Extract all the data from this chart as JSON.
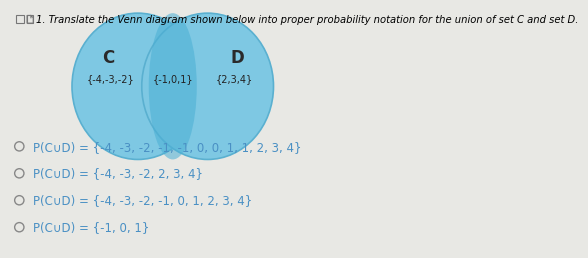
{
  "title": "1. Translate the Venn diagram shown below into proper probability notation for the union of set C and set D.",
  "bg_color": "#e8e8e4",
  "circle_color_light": "#7ec8e3",
  "circle_color_dark": "#4aafd4",
  "label_C": "C",
  "label_D": "D",
  "set_C_only": "{-4,-3,-2}",
  "set_intersection": "{-1,0,1}",
  "set_D_only": "{2,3,4}",
  "options": [
    "P(C∪D) = {-4, -3, -2, -1, -1, 0, 0, 1, 1, 2, 3, 4}",
    "P(C∪D) = {-4, -3, -2, 2, 3, 4}",
    "P(C∪D) = {-4, -3, -2, -1, 0, 1, 2, 3, 4}",
    "P(C∪D) = {-1, 0, 1}"
  ],
  "text_color": "#4a90c4",
  "option_font_size": 8.5,
  "title_font_size": 7.2,
  "checkbox_color": "#555555"
}
